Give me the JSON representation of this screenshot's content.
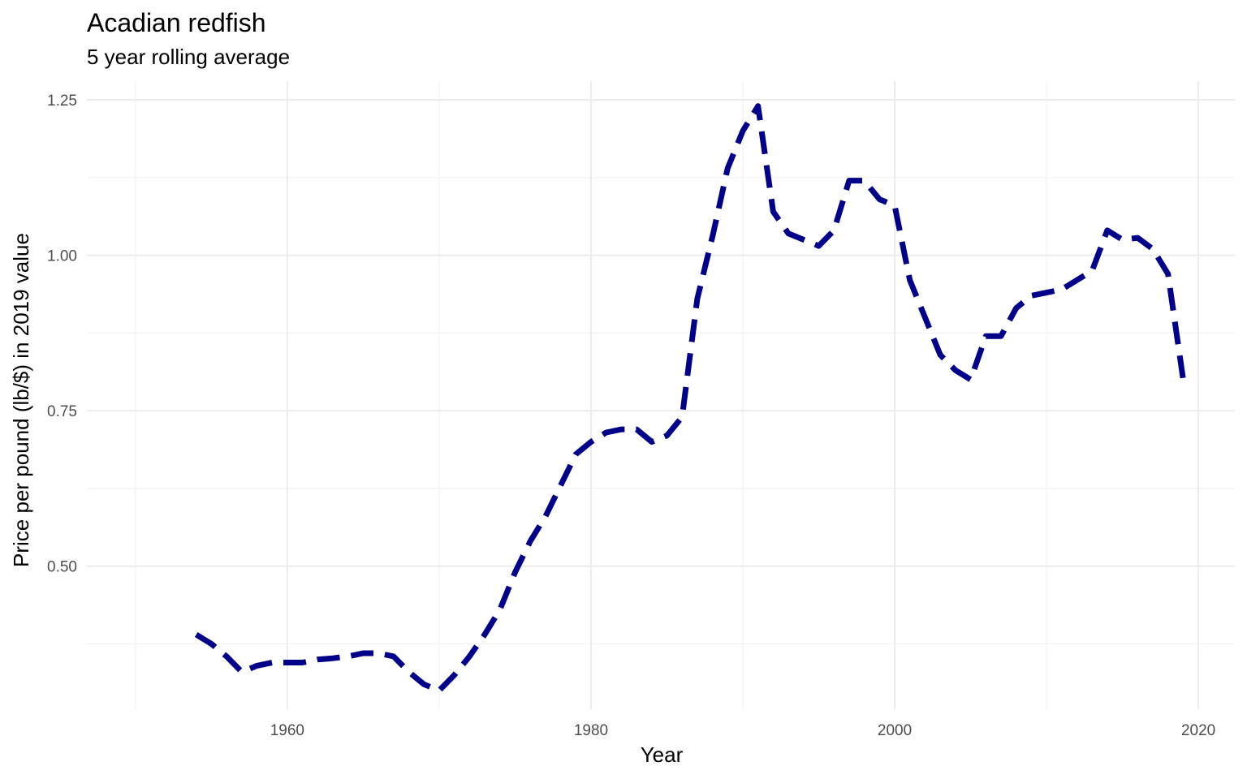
{
  "chart_data": {
    "type": "line",
    "title": "Acadian redfish",
    "subtitle": "5 year rolling average",
    "xlabel": "Year",
    "ylabel": "Price per pound (lb/$) in 2019 value",
    "xlim": [
      1946.8,
      1922.4
    ],
    "x_ticks": [
      1960,
      1980,
      2000,
      2020
    ],
    "x_tick_labels": [
      "1960",
      "1980",
      "2000",
      "2020"
    ],
    "x_minor_ticks": [
      1950,
      1970,
      1990,
      2010
    ],
    "ylim": [
      0.27,
      1.28
    ],
    "y_ticks": [
      0.5,
      0.75,
      1.0,
      1.25
    ],
    "y_tick_labels": [
      "0.50",
      "0.75",
      "1.00",
      "1.25"
    ],
    "y_minor_ticks": [
      0.375,
      0.625,
      0.875,
      1.125
    ],
    "grid": true,
    "legend": "none",
    "series": [
      {
        "color": "#00008b",
        "line_style": "dashed",
        "x": [
          1954,
          1955,
          1956,
          1957,
          1958,
          1959,
          1960,
          1961,
          1962,
          1963,
          1964,
          1965,
          1966,
          1967,
          1968,
          1969,
          1970,
          1971,
          1972,
          1973,
          1974,
          1975,
          1976,
          1977,
          1978,
          1979,
          1980,
          1981,
          1982,
          1983,
          1984,
          1985,
          1986,
          1987,
          1988,
          1989,
          1990,
          1991,
          1992,
          1993,
          1994,
          1995,
          1996,
          1997,
          1998,
          1999,
          2000,
          2001,
          2002,
          2003,
          2004,
          2005,
          2006,
          2007,
          2008,
          2009,
          2010,
          2011,
          2012,
          2013,
          2014,
          2015,
          2016,
          2017,
          2018,
          2019
        ],
        "y": [
          0.39,
          0.375,
          0.355,
          0.33,
          0.34,
          0.345,
          0.345,
          0.345,
          0.35,
          0.352,
          0.355,
          0.36,
          0.36,
          0.355,
          0.33,
          0.31,
          0.3,
          0.325,
          0.355,
          0.39,
          0.43,
          0.49,
          0.54,
          0.58,
          0.63,
          0.68,
          0.7,
          0.715,
          0.72,
          0.72,
          0.7,
          0.71,
          0.74,
          0.93,
          1.03,
          1.14,
          1.2,
          1.24,
          1.07,
          1.035,
          1.025,
          1.015,
          1.04,
          1.12,
          1.12,
          1.09,
          1.08,
          0.96,
          0.9,
          0.84,
          0.815,
          0.8,
          0.87,
          0.87,
          0.915,
          0.935,
          0.94,
          0.945,
          0.96,
          0.975,
          1.04,
          1.025,
          1.028,
          1.01,
          0.97,
          0.8
        ]
      }
    ]
  }
}
